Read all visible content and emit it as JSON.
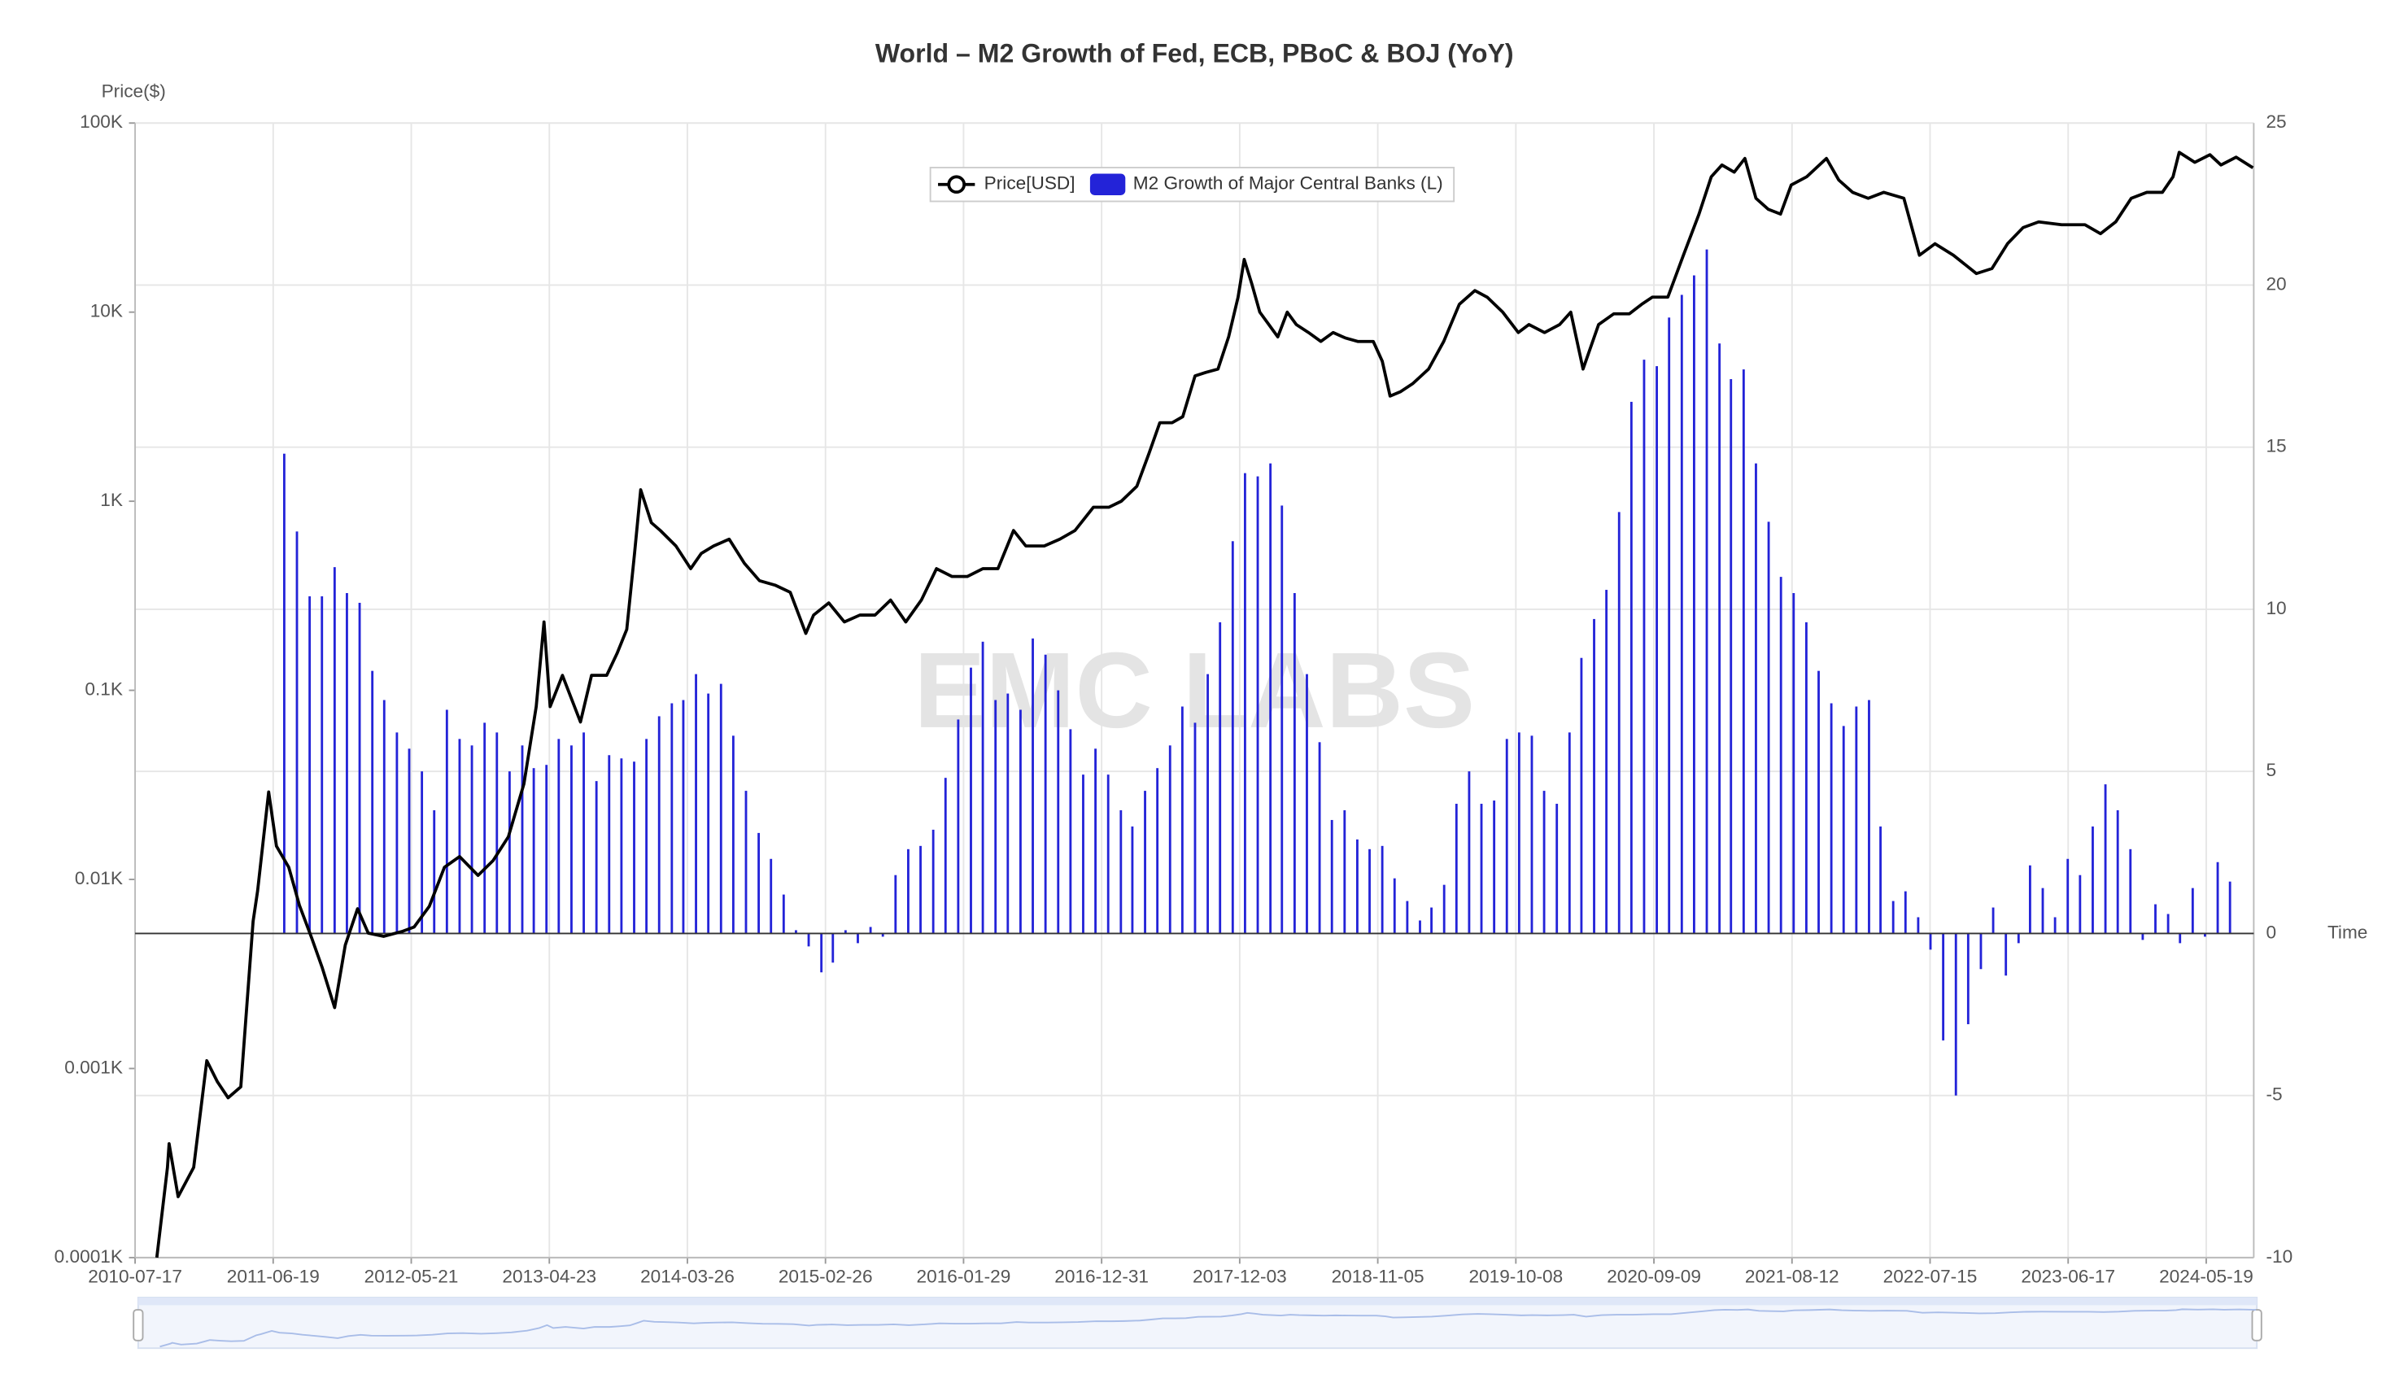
{
  "chart_data": {
    "type": "combo",
    "title": "World – M2 Growth of Fed, ECB, PBoC & BOJ (YoY)",
    "y_label": "Price($)",
    "x_label": "Time",
    "watermark": "EMC LABS",
    "grid": true,
    "ylog": true,
    "xlim": [
      "2010-07-17",
      "2024-09-12"
    ],
    "xticks": [
      "2010-07-17",
      "2011-06-19",
      "2012-05-21",
      "2013-04-23",
      "2014-03-26",
      "2015-02-26",
      "2016-01-29",
      "2016-12-31",
      "2017-12-03",
      "2018-11-05",
      "2019-10-08",
      "2020-09-09",
      "2021-08-12",
      "2022-07-15",
      "2023-06-17",
      "2024-05-19"
    ],
    "ylim": [
      0.1,
      100000
    ],
    "yticks": [
      {
        "value": 0.1,
        "label": "0.0001K"
      },
      {
        "value": 1,
        "label": "0.001K"
      },
      {
        "value": 10,
        "label": "0.01K"
      },
      {
        "value": 100,
        "label": "0.1K"
      },
      {
        "value": 1000,
        "label": "1K"
      },
      {
        "value": 10000,
        "label": "10K"
      },
      {
        "value": 100000,
        "label": "100K"
      }
    ],
    "y2lim": [
      -10,
      25
    ],
    "y2ticks": [
      -10,
      -5,
      0,
      5,
      10,
      15,
      20,
      25
    ],
    "series": [
      {
        "name": "Price[USD]",
        "type": "line",
        "color": "#000000",
        "x": [
          "2010-09-08",
          "2010-10-04",
          "2010-10-08",
          "2010-10-30",
          "2010-12-07",
          "2011-01-08",
          "2011-02-03",
          "2011-03-01",
          "2011-04-01",
          "2011-05-01",
          "2011-05-12",
          "2011-06-08",
          "2011-06-27",
          "2011-07-27",
          "2011-08-22",
          "2011-09-21",
          "2011-10-17",
          "2011-11-16",
          "2011-12-12",
          "2012-01-11",
          "2012-02-06",
          "2012-03-15",
          "2012-04-28",
          "2012-05-28",
          "2012-07-04",
          "2012-08-10",
          "2012-09-16",
          "2012-10-31",
          "2012-12-07",
          "2013-01-13",
          "2013-02-20",
          "2013-03-22",
          "2013-04-10",
          "2013-04-25",
          "2013-05-25",
          "2013-07-08",
          "2013-08-04",
          "2013-09-10",
          "2013-10-06",
          "2013-10-29",
          "2013-11-17",
          "2013-12-02",
          "2013-12-28",
          "2014-01-19",
          "2014-02-26",
          "2014-04-03",
          "2014-04-29",
          "2014-05-29",
          "2014-07-06",
          "2014-08-12",
          "2014-09-18",
          "2014-10-26",
          "2014-12-02",
          "2015-01-09",
          "2015-01-28",
          "2015-03-06",
          "2015-04-13",
          "2015-05-21",
          "2015-06-27",
          "2015-08-04",
          "2015-09-10",
          "2015-10-18",
          "2015-11-24",
          "2016-01-01",
          "2016-02-07",
          "2016-03-16",
          "2016-04-22",
          "2016-05-30",
          "2016-06-29",
          "2016-08-13",
          "2016-09-20",
          "2016-10-27",
          "2016-12-11",
          "2017-01-18",
          "2017-02-17",
          "2017-03-27",
          "2017-04-26",
          "2017-05-22",
          "2017-06-21",
          "2017-07-17",
          "2017-08-16",
          "2017-09-11",
          "2017-10-11",
          "2017-11-06",
          "2017-11-29",
          "2017-12-14",
          "2018-01-02",
          "2018-01-21",
          "2018-02-12",
          "2018-03-06",
          "2018-03-29",
          "2018-04-20",
          "2018-05-20",
          "2018-06-19",
          "2018-07-19",
          "2018-08-18",
          "2018-09-17",
          "2018-10-25",
          "2018-11-16",
          "2018-12-05",
          "2018-12-31",
          "2019-01-30",
          "2019-03-09",
          "2019-04-15",
          "2019-05-23",
          "2019-06-30",
          "2019-07-30",
          "2019-09-06",
          "2019-10-14",
          "2019-11-09",
          "2019-12-17",
          "2020-01-23",
          "2020-02-19",
          "2020-03-20",
          "2020-04-27",
          "2020-06-03",
          "2020-07-11",
          "2020-08-10",
          "2020-09-05",
          "2020-10-13",
          "2020-11-20",
          "2020-12-28",
          "2021-01-27",
          "2021-02-22",
          "2021-03-24",
          "2021-04-19",
          "2021-05-16",
          "2021-06-15",
          "2021-07-15",
          "2021-08-10",
          "2021-09-17",
          "2021-11-04",
          "2021-12-04",
          "2022-01-07",
          "2022-02-14",
          "2022-03-24",
          "2022-05-12",
          "2022-06-19",
          "2022-07-27",
          "2022-09-10",
          "2022-11-05",
          "2022-12-13",
          "2023-01-20",
          "2023-02-27",
          "2023-04-06",
          "2023-06-01",
          "2023-07-28",
          "2023-09-04",
          "2023-10-11",
          "2023-11-18",
          "2023-12-26",
          "2024-02-02",
          "2024-02-28",
          "2024-03-14",
          "2024-04-21",
          "2024-05-28",
          "2024-06-24",
          "2024-07-31",
          "2024-09-10"
        ],
        "values": [
          0.1,
          0.3,
          0.4,
          0.21,
          0.3,
          1.1,
          0.85,
          0.7,
          0.8,
          6,
          8.7,
          29,
          15,
          11.6,
          7.3,
          4.9,
          3.4,
          2.1,
          4.5,
          7,
          5.2,
          5,
          5.3,
          5.6,
          7.2,
          11.6,
          13.2,
          10.5,
          12.6,
          16.8,
          32,
          82,
          230,
          82,
          120,
          68,
          120,
          120,
          158,
          210,
          530,
          1150,
          770,
          700,
          580,
          440,
          530,
          580,
          630,
          470,
          380,
          360,
          330,
          200,
          250,
          290,
          230,
          250,
          250,
          300,
          230,
          300,
          440,
          400,
          400,
          440,
          440,
          700,
          580,
          580,
          630,
          700,
          930,
          930,
          1000,
          1200,
          1800,
          2600,
          2600,
          2800,
          4600,
          4800,
          5000,
          7400,
          12000,
          19000,
          14000,
          10000,
          8600,
          7400,
          10000,
          8600,
          7800,
          7000,
          7800,
          7300,
          7000,
          7000,
          5500,
          3600,
          3800,
          4200,
          5000,
          7000,
          11000,
          13000,
          12000,
          10000,
          7800,
          8600,
          7800,
          8600,
          10000,
          5000,
          8600,
          9800,
          9800,
          11000,
          12000,
          12000,
          20000,
          33000,
          52000,
          60000,
          55000,
          65000,
          40000,
          35000,
          33000,
          47000,
          52000,
          65000,
          50000,
          43000,
          40000,
          43000,
          40000,
          20000,
          23000,
          20000,
          16000,
          17000,
          23000,
          28000,
          30000,
          29000,
          29000,
          26000,
          30000,
          40000,
          43000,
          43000,
          52000,
          70000,
          62000,
          68000,
          60000,
          66000,
          58000
        ]
      },
      {
        "name": "M2 Growth of Major Central Banks (L)",
        "type": "bar",
        "axis": "y2",
        "color": "#2323d8",
        "x": [
          "2011-07",
          "2011-08",
          "2011-09",
          "2011-10",
          "2011-11",
          "2011-12",
          "2012-01",
          "2012-02",
          "2012-03",
          "2012-04",
          "2012-05",
          "2012-06",
          "2012-07",
          "2012-08",
          "2012-09",
          "2012-10",
          "2012-11",
          "2012-12",
          "2013-01",
          "2013-02",
          "2013-03",
          "2013-04",
          "2013-05",
          "2013-06",
          "2013-07",
          "2013-08",
          "2013-09",
          "2013-10",
          "2013-11",
          "2013-12",
          "2014-01",
          "2014-02",
          "2014-03",
          "2014-04",
          "2014-05",
          "2014-06",
          "2014-07",
          "2014-08",
          "2014-09",
          "2014-10",
          "2014-11",
          "2014-12",
          "2015-01",
          "2015-02",
          "2015-03",
          "2015-04",
          "2015-05",
          "2015-06",
          "2015-07",
          "2015-08",
          "2015-09",
          "2015-10",
          "2015-11",
          "2015-12",
          "2016-01",
          "2016-02",
          "2016-03",
          "2016-04",
          "2016-05",
          "2016-06",
          "2016-07",
          "2016-08",
          "2016-09",
          "2016-10",
          "2016-11",
          "2016-12",
          "2017-01",
          "2017-02",
          "2017-03",
          "2017-04",
          "2017-05",
          "2017-06",
          "2017-07",
          "2017-08",
          "2017-09",
          "2017-10",
          "2017-11",
          "2017-12",
          "2018-01",
          "2018-02",
          "2018-03",
          "2018-04",
          "2018-05",
          "2018-06",
          "2018-07",
          "2018-08",
          "2018-09",
          "2018-10",
          "2018-11",
          "2018-12",
          "2019-01",
          "2019-02",
          "2019-03",
          "2019-04",
          "2019-05",
          "2019-06",
          "2019-07",
          "2019-08",
          "2019-09",
          "2019-10",
          "2019-11",
          "2019-12",
          "2020-01",
          "2020-02",
          "2020-03",
          "2020-04",
          "2020-05",
          "2020-06",
          "2020-07",
          "2020-08",
          "2020-09",
          "2020-10",
          "2020-11",
          "2020-12",
          "2021-01",
          "2021-02",
          "2021-03",
          "2021-04",
          "2021-05",
          "2021-06",
          "2021-07",
          "2021-08",
          "2021-09",
          "2021-10",
          "2021-11",
          "2021-12",
          "2022-01",
          "2022-02",
          "2022-03",
          "2022-04",
          "2022-05",
          "2022-06",
          "2022-07",
          "2022-08",
          "2022-09",
          "2022-10",
          "2022-11",
          "2022-12",
          "2023-01",
          "2023-02",
          "2023-03",
          "2023-04",
          "2023-05",
          "2023-06",
          "2023-07",
          "2023-08",
          "2023-09",
          "2023-10",
          "2023-11",
          "2023-12",
          "2024-01",
          "2024-02",
          "2024-03",
          "2024-04",
          "2024-05",
          "2024-06",
          "2024-07"
        ],
        "values": [
          14.8,
          12.4,
          10.4,
          10.4,
          11.3,
          10.5,
          10.2,
          8.1,
          7.2,
          6.2,
          5.7,
          5.0,
          3.8,
          6.9,
          6.0,
          5.8,
          6.5,
          6.2,
          5.0,
          5.8,
          5.1,
          5.2,
          6.0,
          5.8,
          6.2,
          4.7,
          5.5,
          5.4,
          5.3,
          6.0,
          6.7,
          7.1,
          7.2,
          8.0,
          7.4,
          7.7,
          6.1,
          4.4,
          3.1,
          2.3,
          1.2,
          0.1,
          -0.4,
          -1.2,
          -0.9,
          0.1,
          -0.3,
          0.2,
          -0.1,
          1.8,
          2.6,
          2.7,
          3.2,
          4.8,
          6.6,
          8.2,
          9.0,
          7.2,
          7.4,
          6.9,
          9.1,
          8.6,
          7.5,
          6.3,
          4.9,
          5.7,
          4.9,
          3.8,
          3.3,
          4.4,
          5.1,
          5.8,
          7.0,
          6.5,
          8.0,
          9.6,
          12.1,
          14.2,
          14.1,
          14.5,
          13.2,
          10.5,
          8.0,
          5.9,
          3.5,
          3.8,
          2.9,
          2.6,
          2.7,
          1.7,
          1.0,
          0.4,
          0.8,
          1.5,
          4.0,
          5.0,
          4.0,
          4.1,
          6.0,
          6.2,
          6.1,
          4.4,
          4.0,
          6.2,
          8.5,
          9.7,
          10.6,
          13.0,
          16.4,
          17.7,
          17.5,
          19.0,
          19.7,
          20.3,
          21.1,
          18.2,
          17.1,
          17.4,
          14.5,
          12.7,
          11.0,
          10.5,
          9.6,
          8.1,
          7.1,
          6.4,
          7.0,
          7.2,
          3.3,
          1.0,
          1.3,
          0.5,
          -0.5,
          -3.3,
          -5.0,
          -2.8,
          -1.1,
          0.8,
          -1.3,
          -0.3,
          2.1,
          1.4,
          0.5,
          2.3,
          1.8,
          3.3,
          4.6,
          3.8,
          2.6,
          -0.2,
          0.9,
          0.6,
          -0.3,
          1.4,
          -0.1,
          2.2,
          1.6
        ]
      }
    ]
  }
}
